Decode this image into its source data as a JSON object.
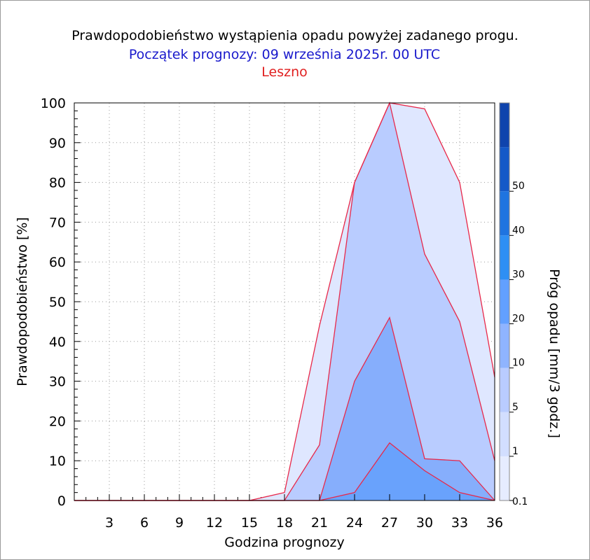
{
  "titles": {
    "main": "Prawdopodobieństwo wystąpienia opadu powyżej zadanego progu.",
    "forecast_start": "Początek prognozy: 09 września 2025r. 00 UTC",
    "location": "Leszno"
  },
  "colors": {
    "main_title": "#000000",
    "forecast_start": "#1a1acc",
    "location": "#e02020",
    "series_outline": "#e8284a"
  },
  "chart_data": {
    "type": "area",
    "xlabel": "Godzina prognozy",
    "ylabel": "Prawdopodobieństwo [%]",
    "xlim": [
      0,
      36
    ],
    "ylim": [
      0,
      100
    ],
    "x_ticks": [
      "3",
      "6",
      "9",
      "12",
      "15",
      "18",
      "21",
      "24",
      "27",
      "30",
      "33",
      "36"
    ],
    "y_ticks": [
      "0",
      "10",
      "20",
      "30",
      "40",
      "50",
      "60",
      "70",
      "80",
      "90",
      "100"
    ],
    "x": [
      0,
      3,
      6,
      9,
      12,
      15,
      18,
      21,
      24,
      27,
      30,
      33,
      36
    ],
    "grid": true,
    "series": [
      {
        "threshold": "0.1",
        "color": "#dfe7ff",
        "values": [
          0,
          0,
          0,
          0,
          0,
          0,
          2,
          44,
          80,
          100,
          98.5,
          80,
          31
        ]
      },
      {
        "threshold": "1",
        "color": "#b9ccff",
        "values": [
          0,
          0,
          0,
          0,
          0,
          0,
          0,
          14,
          80,
          100,
          62,
          45,
          10
        ]
      },
      {
        "threshold": "5",
        "color": "#86aefc",
        "values": [
          0,
          0,
          0,
          0,
          0,
          0,
          0,
          0,
          30,
          46,
          10.5,
          10,
          0
        ]
      },
      {
        "threshold": "10",
        "color": "#69a2fc",
        "values": [
          0,
          0,
          0,
          0,
          0,
          0,
          0,
          0,
          2,
          14.5,
          7.5,
          2,
          0
        ]
      }
    ],
    "colorbar": {
      "label": "Próg opadu [mm/3 godz.]",
      "tick_labels": [
        "0.1",
        "1",
        "5",
        "10",
        "20",
        "30",
        "40",
        "50"
      ],
      "bands": [
        "#e6ecff",
        "#d2deff",
        "#b9ccff",
        "#8fb4ff",
        "#62a0ff",
        "#2e8ff4",
        "#1f74e0",
        "#1459c8",
        "#0f44ad"
      ]
    }
  }
}
